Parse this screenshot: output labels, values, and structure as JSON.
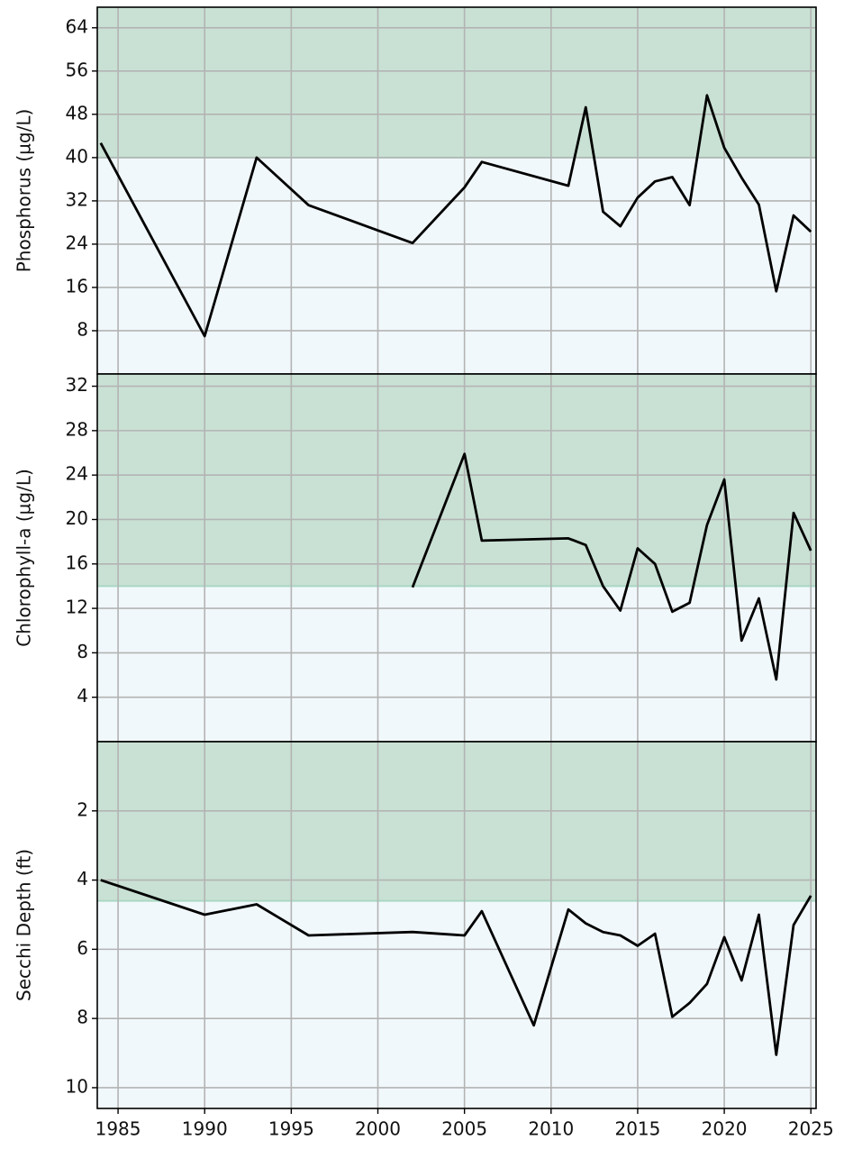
{
  "chart_data": [
    {
      "type": "line",
      "ylabel": "Phosphorus (µg/L)",
      "x": [
        1984,
        1990,
        1993,
        1996,
        2002,
        2005,
        2006,
        2011,
        2012,
        2013,
        2014,
        2015,
        2016,
        2017,
        2018,
        2019,
        2020,
        2021,
        2022,
        2023,
        2024,
        2025
      ],
      "values": [
        42.7,
        7,
        40,
        31.2,
        24.2,
        34.5,
        39.2,
        34.8,
        49.3,
        30,
        27.3,
        32.6,
        35.6,
        36.4,
        31.2,
        51.5,
        41.8,
        36.3,
        31.3,
        15.3,
        29.3,
        26.3
      ],
      "color": "#000000",
      "xlim": [
        1983.8,
        2025.3
      ],
      "xticks": [
        1985,
        1990,
        1995,
        2000,
        2005,
        2010,
        2015,
        2020,
        2025
      ],
      "ylim": [
        0,
        67.8
      ],
      "yticks": [
        8,
        16,
        24,
        32,
        40,
        48,
        56,
        64
      ],
      "grid": true,
      "band": [
        40,
        67.8
      ],
      "band_color": "#c9e1d4",
      "background": "#f1f8fb"
    },
    {
      "type": "line",
      "ylabel": "Chlorophyll-a (µg/L)",
      "x": [
        2002,
        2005,
        2006,
        2011,
        2012,
        2013,
        2014,
        2015,
        2016,
        2017,
        2018,
        2019,
        2020,
        2021,
        2022,
        2023,
        2024,
        2025
      ],
      "values": [
        13.9,
        25.9,
        18.1,
        18.3,
        17.7,
        14,
        11.8,
        17.4,
        16,
        11.7,
        12.5,
        19.5,
        23.6,
        9.1,
        12.9,
        5.6,
        20.6,
        17.2
      ],
      "color": "#000000",
      "xlim": [
        1983.8,
        2025.3
      ],
      "xticks": [
        1985,
        1990,
        1995,
        2000,
        2005,
        2010,
        2015,
        2020,
        2025
      ],
      "ylim": [
        0,
        33.1
      ],
      "yticks": [
        4,
        8,
        12,
        16,
        20,
        24,
        28,
        32
      ],
      "grid": true,
      "band": [
        14,
        33.1
      ],
      "band_color": "#c9e1d4",
      "background": "#f1f8fb"
    },
    {
      "type": "line",
      "ylabel": "Secchi Depth (ft)",
      "x": [
        1984,
        1990,
        1993,
        1996,
        2002,
        2005,
        2006,
        2009,
        2011,
        2012,
        2013,
        2014,
        2015,
        2016,
        2017,
        2018,
        2019,
        2020,
        2021,
        2022,
        2023,
        2024,
        2025
      ],
      "values": [
        4.0,
        5.0,
        4.7,
        5.6,
        5.5,
        5.6,
        4.9,
        8.2,
        4.85,
        5.25,
        5.5,
        5.6,
        5.9,
        5.55,
        7.95,
        7.55,
        7.0,
        5.65,
        6.9,
        5.0,
        9.05,
        5.3,
        4.45
      ],
      "color": "#000000",
      "xlim": [
        1983.8,
        2025.3
      ],
      "xticks": [
        1985,
        1990,
        1995,
        2000,
        2005,
        2010,
        2015,
        2020,
        2025
      ],
      "ylim": [
        10.6,
        0
      ],
      "yticks": [
        2,
        4,
        6,
        8,
        10
      ],
      "grid": true,
      "band": [
        4.6,
        0
      ],
      "band_color": "#c9e1d4",
      "background": "#f1f8fb"
    }
  ]
}
